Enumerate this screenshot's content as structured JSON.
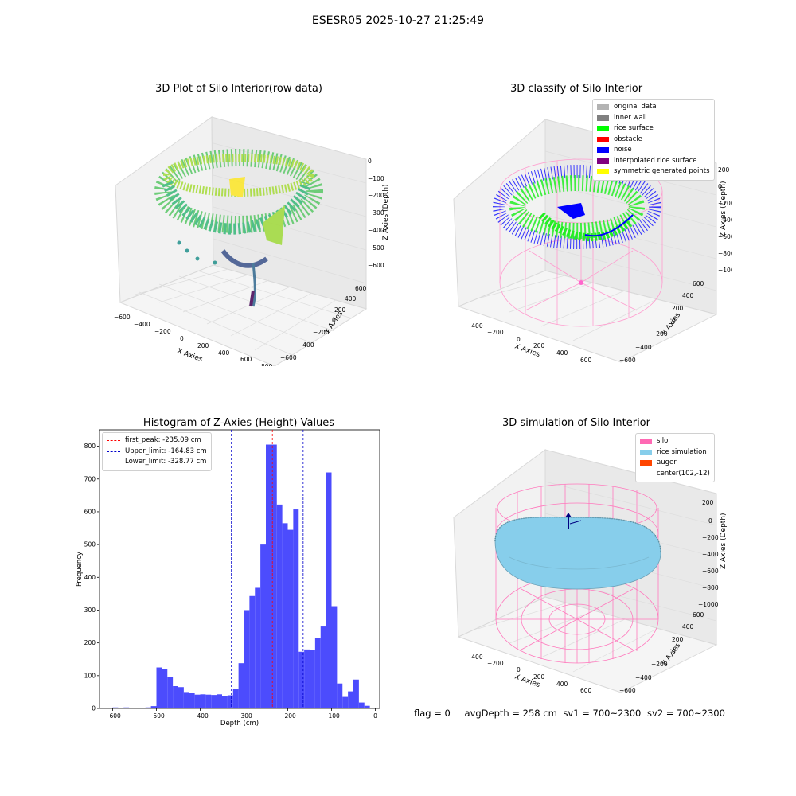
{
  "suptitle": "ESESR05 2025-10-27 21:25:49",
  "footer": {
    "flag": "flag = 0",
    "avg_depth": "avgDepth = 258 cm",
    "sv1": "sv1 = 700~2300",
    "sv2": "sv2 = 700~2300"
  },
  "chart_data": [
    {
      "type": "scatter",
      "title": "3D Plot of Silo Interior(row data)",
      "xlabel": "X Axies",
      "ylabel": "Y Axies",
      "zlabel": "Z Axies (Depth)",
      "x_ticks": [
        "−600",
        "−400",
        "−200",
        "0",
        "200",
        "400",
        "600",
        "800"
      ],
      "y_ticks": [
        "−600",
        "−400",
        "−200",
        "0",
        "200",
        "400",
        "600"
      ],
      "z_ticks": [
        "0",
        "−100",
        "−200",
        "−300",
        "−400",
        "−500",
        "−600"
      ],
      "xlim": [
        -600,
        800
      ],
      "ylim": [
        -600,
        600
      ],
      "zlim": [
        -650,
        0
      ],
      "colormap": [
        "#440154",
        "#3b528b",
        "#21918c",
        "#5ec962",
        "#fde725"
      ]
    },
    {
      "type": "scatter",
      "title": "3D classify of Silo Interior",
      "xlabel": "X Axies",
      "ylabel": "Y Axies",
      "zlabel": "Z Axies (Depth)",
      "x_ticks": [
        "−400",
        "−200",
        "0",
        "200",
        "400",
        "600"
      ],
      "y_ticks": [
        "−600",
        "−400",
        "−200",
        "0",
        "200",
        "400",
        "600"
      ],
      "z_ticks": [
        "200",
        "0",
        "−200",
        "−400",
        "−600",
        "−800",
        "−1000"
      ],
      "xlim": [
        -400,
        700
      ],
      "ylim": [
        -600,
        600
      ],
      "zlim": [
        -1000,
        200
      ],
      "legend": [
        {
          "label": "original data",
          "color": "#b3b3b3"
        },
        {
          "label": "inner wall",
          "color": "#808080"
        },
        {
          "label": "rice surface",
          "color": "#00ff00"
        },
        {
          "label": "obstacle",
          "color": "#ff0000"
        },
        {
          "label": "noise",
          "color": "#0000ff"
        },
        {
          "label": "interpolated rice surface",
          "color": "#800080"
        },
        {
          "label": "symmetric generated points",
          "color": "#ffff00"
        }
      ]
    },
    {
      "type": "bar",
      "title": "Histogram of Z-Axies (Height) Values",
      "xlabel": "Depth (cm)",
      "ylabel": "Frequency",
      "xlim": [
        -630,
        10
      ],
      "ylim": [
        0,
        850
      ],
      "x_ticks": [
        -600,
        -500,
        -400,
        -300,
        -200,
        -100,
        0
      ],
      "x_tick_labels": [
        "−600",
        "−500",
        "−400",
        "−300",
        "−200",
        "−100",
        "0"
      ],
      "y_ticks": [
        0,
        100,
        200,
        300,
        400,
        500,
        600,
        700,
        800
      ],
      "bar_color": "#4c4cfd",
      "bin_width": 12.5,
      "bins_start": [
        -600,
        -587.5,
        -575,
        -562.5,
        -550,
        -537.5,
        -525,
        -512.5,
        -500,
        -487.5,
        -475,
        -462.5,
        -450,
        -437.5,
        -425,
        -412.5,
        -400,
        -387.5,
        -375,
        -362.5,
        -350,
        -337.5,
        -325,
        -312.5,
        -300,
        -287.5,
        -275,
        -262.5,
        -250,
        -237.5,
        -225,
        -212.5,
        -200,
        -187.5,
        -175,
        -162.5,
        -150,
        -137.5,
        -125,
        -112.5,
        -100,
        -87.5,
        -75,
        -62.5,
        -50,
        -37.5,
        -25,
        -12.5
      ],
      "values": [
        3,
        0,
        3,
        0,
        0,
        2,
        3,
        7,
        125,
        120,
        95,
        68,
        65,
        50,
        48,
        42,
        43,
        42,
        41,
        43,
        38,
        40,
        60,
        138,
        300,
        343,
        368,
        500,
        805,
        805,
        622,
        565,
        545,
        607,
        173,
        180,
        178,
        215,
        250,
        720,
        312,
        76,
        35,
        52,
        88,
        18,
        8,
        0
      ],
      "vlines": [
        {
          "label": "first_peak: -235.09 cm",
          "x": -235.09,
          "color": "#ff0000"
        },
        {
          "label": "Upper_limit: -164.83 cm",
          "x": -164.83,
          "color": "#0000cc"
        },
        {
          "label": "Lower_limit: -328.77 cm",
          "x": -328.77,
          "color": "#0000cc"
        }
      ]
    },
    {
      "type": "scatter",
      "title": "3D simulation of Silo Interior",
      "xlabel": "X Axies",
      "ylabel": "Y Axies",
      "zlabel": "Z Axies (Depth)",
      "x_ticks": [
        "−400",
        "−200",
        "0",
        "200",
        "400",
        "600"
      ],
      "y_ticks": [
        "−600",
        "−400",
        "−200",
        "0",
        "200",
        "400",
        "600"
      ],
      "z_ticks": [
        "200",
        "0",
        "−200",
        "−400",
        "−600",
        "−800",
        "−1000"
      ],
      "xlim": [
        -400,
        700
      ],
      "ylim": [
        -600,
        600
      ],
      "zlim": [
        -1000,
        250
      ],
      "legend": [
        {
          "label": "silo",
          "color": "#ff69b4"
        },
        {
          "label": "rice simulation",
          "color": "#87ceeb"
        },
        {
          "label": "auger",
          "color": "#ff4500"
        },
        {
          "label": "center(102,-12)",
          "color": ""
        }
      ]
    }
  ]
}
